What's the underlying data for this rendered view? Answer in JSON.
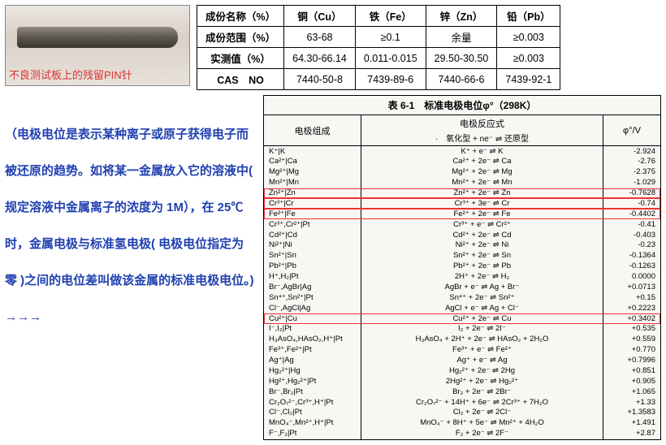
{
  "pin_caption": "不良测试板上的残留PIN针",
  "comp_table": {
    "headers": [
      "成份名称（%）",
      "铜（Cu）",
      "铁（Fe）",
      "锌（Zn）",
      "铅（Pb）"
    ],
    "rows": [
      [
        "成份范围（%）",
        "63-68",
        "≥0.1",
        "余量",
        "≥0.003"
      ],
      [
        "实测值（%）",
        "64.30-66.14",
        "0.011-0.015",
        "29.50-30.50",
        "≥0.003"
      ],
      [
        "CAS　NO",
        "7440-50-8",
        "7439-89-6",
        "7440-66-6",
        "7439-92-1"
      ]
    ]
  },
  "left_text": "（电极电位是表示某种离子或原子获得电子而被还原的趋势。如将某一金属放入它的溶液中( 规定溶液中金属离子的浓度为 1M），在 25℃时，金属电极与标准氢电极( 电极电位指定为零 )之间的电位差叫做该金属的标准电极电位。) →→→",
  "pot_table": {
    "title": "表 6-1　标准电极电位φ°（298K）",
    "head": {
      "c1": "电极组成",
      "c2": "电极反应式",
      "c2_sub": "·　氧化型 + ne⁻ ⇌ 还原型",
      "c3": "φ°/V"
    },
    "rows": [
      {
        "c1": "K⁺|K",
        "c2": "K⁺ + e⁻ ⇌ K",
        "c3": "-2.924"
      },
      {
        "c1": "Ca²⁺|Ca",
        "c2": "Ca²⁺ + 2e⁻ ⇌ Ca",
        "c3": "-2.76"
      },
      {
        "c1": "Mg²⁺|Mg",
        "c2": "Mg²⁺ + 2e⁻ ⇌ Mg",
        "c3": "-2.375"
      },
      {
        "c1": "Mn²⁺|Mn",
        "c2": "Mn²⁺ + 2e⁻ ⇌ Mn",
        "c3": "-1.029"
      },
      {
        "c1": "Zn²⁺|Zn",
        "c2": "Zn²⁺ + 2e⁻ ⇌ Zn",
        "c3": "-0.7628",
        "hl": true
      },
      {
        "c1": "Cr³⁺|Cr",
        "c2": "Cr³⁺ + 3e⁻ ⇌ Cr",
        "c3": "-0.74",
        "hl": true
      },
      {
        "c1": "Fe²⁺|Fe",
        "c2": "Fe²⁺ + 2e⁻ ⇌ Fe",
        "c3": "-0.4402",
        "hl": true
      },
      {
        "c1": "Cr³⁺,Cr²⁺|Pt",
        "c2": "Cr³⁺ + e⁻ ⇌ Cr²⁺",
        "c3": "-0.41"
      },
      {
        "c1": "Cd²⁺|Cd",
        "c2": "Cd²⁺ + 2e⁻ ⇌ Cd",
        "c3": "-0.403"
      },
      {
        "c1": "Ni²⁺|Ni",
        "c2": "Ni²⁺ + 2e⁻ ⇌ Ni",
        "c3": "-0.23"
      },
      {
        "c1": "Sn²⁺|Sn",
        "c2": "Sn²⁺ + 2e⁻ ⇌ Sn",
        "c3": "-0.1364"
      },
      {
        "c1": "Pb²⁺|Pb",
        "c2": "Pb²⁺ + 2e⁻ ⇌ Pb",
        "c3": "-0.1263"
      },
      {
        "c1": "H⁺,H₂|Pt",
        "c2": "2H⁺ + 2e⁻ ⇌ H₂",
        "c3": "0.0000"
      },
      {
        "c1": "Br⁻,AgBr|Ag",
        "c2": "AgBr + e⁻ ⇌ Ag + Br⁻",
        "c3": "+0.0713"
      },
      {
        "c1": "Sn⁴⁺,Sn²⁺|Pt",
        "c2": "Sn⁴⁺ + 2e⁻ ⇌ Sn²⁺",
        "c3": "+0.15"
      },
      {
        "c1": "Cl⁻,AgCl|Ag",
        "c2": "AgCl + e⁻ ⇌ Ag + Cl⁻",
        "c3": "+0.2223"
      },
      {
        "c1": "Cu²⁺|Cu",
        "c2": "Cu²⁺ + 2e⁻ ⇌ Cu",
        "c3": "+0.3402",
        "hl": true
      },
      {
        "c1": "I⁻,I₂|Pt",
        "c2": "I₂ + 2e⁻ ⇌ 2I⁻",
        "c3": "+0.535"
      },
      {
        "c1": "H₃AsO₄,HAsO₂,H⁺|Pt",
        "c2": "H₃AsO₄ + 2H⁺ + 2e⁻ ⇌ HAsO₂ + 2H₂O",
        "c3": "+0.559"
      },
      {
        "c1": "Fe³⁺,Fe²⁺|Pt",
        "c2": "Fe³⁺ + e⁻ ⇌ Fe²⁺",
        "c3": "+0.770"
      },
      {
        "c1": "Ag⁺|Ag",
        "c2": "Ag⁺ + e⁻ ⇌ Ag",
        "c3": "+0.7996"
      },
      {
        "c1": "Hg₂²⁺|Hg",
        "c2": "Hg₂²⁺ + 2e⁻ ⇌ 2Hg",
        "c3": "+0.851"
      },
      {
        "c1": "Hg²⁺,Hg₂²⁺|Pt",
        "c2": "2Hg²⁺ + 2e⁻ ⇌ Hg₂²⁺",
        "c3": "+0.905"
      },
      {
        "c1": "Br⁻,Br₂|Pt",
        "c2": "Br₂ + 2e⁻ ⇌ 2Br⁻",
        "c3": "+1.065"
      },
      {
        "c1": "Cr₂O₇²⁻,Cr³⁺,H⁺|Pt",
        "c2": "Cr₂O₇²⁻ + 14H⁺ + 6e⁻ ⇌ 2Cr³⁺ + 7H₂O",
        "c3": "+1.33"
      },
      {
        "c1": "Cl⁻,Cl₂|Pt",
        "c2": "Cl₂ + 2e⁻ ⇌ 2Cl⁻",
        "c3": "+1.3583"
      },
      {
        "c1": "MnO₄⁻,Mn²⁺,H⁺|Pt",
        "c2": "MnO₄⁻ + 8H⁺ + 5e⁻ ⇌ Mn²⁺ + 4H₂O",
        "c3": "+1.491"
      },
      {
        "c1": "F⁻,F₂|Pt",
        "c2": "F₂ + 2e⁻ ⇌ 2F⁻",
        "c3": "+2.87"
      }
    ]
  }
}
